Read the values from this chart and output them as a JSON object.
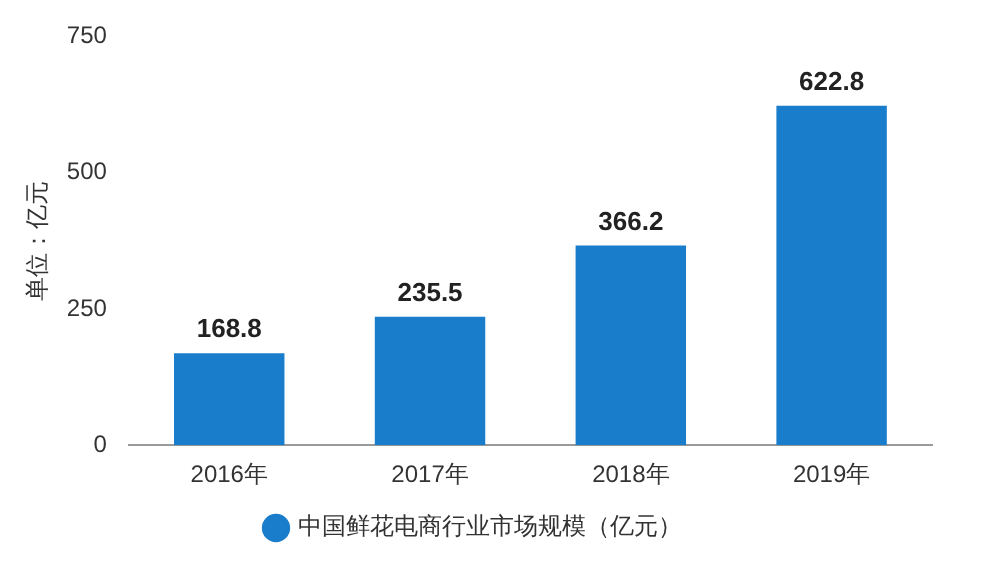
{
  "chart_data": {
    "type": "bar",
    "ylabel": "单位：亿元",
    "categories": [
      "2016年",
      "2017年",
      "2018年",
      "2019年"
    ],
    "series": [
      {
        "name": "中国鲜花电商行业市场规模（亿元）",
        "color": "#1a7dcb",
        "values": [
          168.8,
          235.5,
          366.2,
          622.8
        ]
      }
    ],
    "ylim": [
      0,
      750
    ],
    "yticks": [
      0,
      250,
      500,
      750
    ],
    "grid": false,
    "legend": "bottom",
    "marker": "circle",
    "data_labels": true
  }
}
